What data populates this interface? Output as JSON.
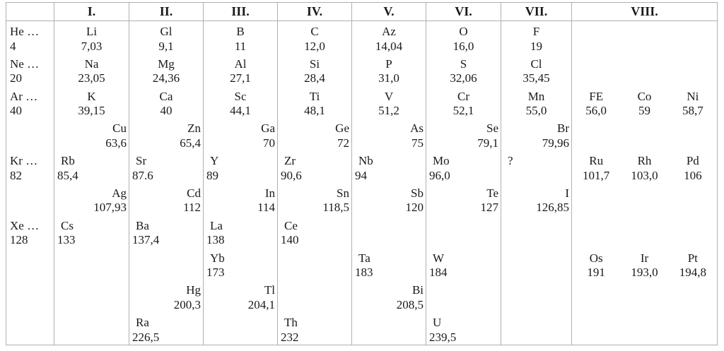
{
  "table": {
    "title": "periodic-table-of-elements",
    "colors": {
      "background": "#ffffff",
      "border": "#b0b0b0",
      "text": "#1a1a1a"
    },
    "row_slots": 10,
    "columns": [
      {
        "key": "series",
        "header": "",
        "entries": [
          {
            "row": 1,
            "align": "left",
            "symbol": "He …",
            "value": "4"
          },
          {
            "row": 2,
            "align": "left",
            "symbol": "Ne …",
            "value": "20"
          },
          {
            "row": 3,
            "align": "left",
            "symbol": "Ar …",
            "value": "40"
          },
          {
            "row": 5,
            "align": "left",
            "symbol": "Kr …",
            "value": "82"
          },
          {
            "row": 7,
            "align": "left",
            "symbol": "Xe …",
            "value": "128"
          }
        ]
      },
      {
        "key": "group-i",
        "header": "I.",
        "entries": [
          {
            "row": 1,
            "align": "center",
            "symbol": "Li",
            "value": "7,03"
          },
          {
            "row": 2,
            "align": "center",
            "symbol": "Na",
            "value": "23,05"
          },
          {
            "row": 3,
            "align": "center",
            "symbol": "K",
            "value": "39,15"
          },
          {
            "row": 4,
            "align": "right",
            "symbol": "Cu",
            "value": "63,6"
          },
          {
            "row": 5,
            "align": "left",
            "symbol": "Rb",
            "value": "85,4"
          },
          {
            "row": 6,
            "align": "right",
            "symbol": "Ag",
            "value": "107,93"
          },
          {
            "row": 7,
            "align": "left",
            "symbol": "Cs",
            "value": "133"
          }
        ]
      },
      {
        "key": "group-ii",
        "header": "II.",
        "entries": [
          {
            "row": 1,
            "align": "center",
            "symbol": "Gl",
            "value": "9,1"
          },
          {
            "row": 2,
            "align": "center",
            "symbol": "Mg",
            "value": "24,36"
          },
          {
            "row": 3,
            "align": "center",
            "symbol": "Ca",
            "value": "40"
          },
          {
            "row": 4,
            "align": "right",
            "symbol": "Zn",
            "value": "65,4"
          },
          {
            "row": 5,
            "align": "left",
            "symbol": "Sr",
            "value": "87.6"
          },
          {
            "row": 6,
            "align": "right",
            "symbol": "Cd",
            "value": "112"
          },
          {
            "row": 7,
            "align": "left",
            "symbol": "Ba",
            "value": "137,4"
          },
          {
            "row": 9,
            "align": "right",
            "symbol": "Hg",
            "value": "200,3"
          },
          {
            "row": 10,
            "align": "left",
            "symbol": "Ra",
            "value": "226,5"
          }
        ]
      },
      {
        "key": "group-iii",
        "header": "III.",
        "entries": [
          {
            "row": 1,
            "align": "center",
            "symbol": "B",
            "value": "11"
          },
          {
            "row": 2,
            "align": "center",
            "symbol": "Al",
            "value": "27,1"
          },
          {
            "row": 3,
            "align": "center",
            "symbol": "Sc",
            "value": "44,1"
          },
          {
            "row": 4,
            "align": "right",
            "symbol": "Ga",
            "value": "70"
          },
          {
            "row": 5,
            "align": "left",
            "symbol": "Y",
            "value": "89"
          },
          {
            "row": 6,
            "align": "right",
            "symbol": "In",
            "value": "114"
          },
          {
            "row": 7,
            "align": "left",
            "symbol": "La",
            "value": "138"
          },
          {
            "row": 8,
            "align": "left",
            "symbol": "Yb",
            "value": "173"
          },
          {
            "row": 9,
            "align": "right",
            "symbol": "Tl",
            "value": "204,1"
          }
        ]
      },
      {
        "key": "group-iv",
        "header": "IV.",
        "entries": [
          {
            "row": 1,
            "align": "center",
            "symbol": "C",
            "value": "12,0"
          },
          {
            "row": 2,
            "align": "center",
            "symbol": "Si",
            "value": "28,4"
          },
          {
            "row": 3,
            "align": "center",
            "symbol": "Ti",
            "value": "48,1"
          },
          {
            "row": 4,
            "align": "right",
            "symbol": "Ge",
            "value": "72"
          },
          {
            "row": 5,
            "align": "left",
            "symbol": "Zr",
            "value": "90,6"
          },
          {
            "row": 6,
            "align": "right",
            "symbol": "Sn",
            "value": "118,5"
          },
          {
            "row": 7,
            "align": "left",
            "symbol": "Ce",
            "value": "140"
          },
          {
            "row": 10,
            "align": "left",
            "symbol": "Th",
            "value": "232"
          }
        ]
      },
      {
        "key": "group-v",
        "header": "V.",
        "entries": [
          {
            "row": 1,
            "align": "center",
            "symbol": "Az",
            "value": "14,04"
          },
          {
            "row": 2,
            "align": "center",
            "symbol": "P",
            "value": "31,0"
          },
          {
            "row": 3,
            "align": "center",
            "symbol": "V",
            "value": "51,2"
          },
          {
            "row": 4,
            "align": "right",
            "symbol": "As",
            "value": "75"
          },
          {
            "row": 5,
            "align": "left",
            "symbol": "Nb",
            "value": "94"
          },
          {
            "row": 6,
            "align": "right",
            "symbol": "Sb",
            "value": "120"
          },
          {
            "row": 8,
            "align": "left",
            "symbol": "Ta",
            "value": "183"
          },
          {
            "row": 9,
            "align": "right",
            "symbol": "Bi",
            "value": "208,5"
          }
        ]
      },
      {
        "key": "group-vi",
        "header": "VI.",
        "entries": [
          {
            "row": 1,
            "align": "center",
            "symbol": "O",
            "value": "16,0"
          },
          {
            "row": 2,
            "align": "center",
            "symbol": "S",
            "value": "32,06"
          },
          {
            "row": 3,
            "align": "center",
            "symbol": "Cr",
            "value": "52,1"
          },
          {
            "row": 4,
            "align": "right",
            "symbol": "Se",
            "value": "79,1"
          },
          {
            "row": 5,
            "align": "left",
            "symbol": "Mo",
            "value": "96,0"
          },
          {
            "row": 6,
            "align": "right",
            "symbol": "Te",
            "value": "127"
          },
          {
            "row": 8,
            "align": "left",
            "symbol": "W",
            "value": "184"
          },
          {
            "row": 10,
            "align": "left",
            "symbol": "U",
            "value": "239,5"
          }
        ]
      },
      {
        "key": "group-vii",
        "header": "VII.",
        "entries": [
          {
            "row": 1,
            "align": "center",
            "symbol": "F",
            "value": "19"
          },
          {
            "row": 2,
            "align": "center",
            "symbol": "Cl",
            "value": "35,45"
          },
          {
            "row": 3,
            "align": "center",
            "symbol": "Mn",
            "value": "55,0"
          },
          {
            "row": 4,
            "align": "right",
            "symbol": "Br",
            "value": "79,96"
          },
          {
            "row": 5,
            "align": "left",
            "symbol": "?"
          },
          {
            "row": 6,
            "align": "right",
            "symbol": "I",
            "value": "126,85"
          }
        ]
      },
      {
        "key": "group-viii",
        "header": "VIII.",
        "entries": [
          {
            "row": 3,
            "align": "center",
            "cells": [
              {
                "symbol": "FE",
                "value": "56,0"
              },
              {
                "symbol": "Co",
                "value": "59"
              },
              {
                "symbol": "Ni",
                "value": "58,7"
              }
            ]
          },
          {
            "row": 5,
            "align": "center",
            "cells": [
              {
                "symbol": "Ru",
                "value": "101,7"
              },
              {
                "symbol": "Rh",
                "value": "103,0"
              },
              {
                "symbol": "Pd",
                "value": "106"
              }
            ]
          },
          {
            "row": 8,
            "align": "center",
            "cells": [
              {
                "symbol": "Os",
                "value": "191"
              },
              {
                "symbol": "Ir",
                "value": "193,0"
              },
              {
                "symbol": "Pt",
                "value": "194,8"
              }
            ]
          }
        ]
      }
    ]
  }
}
